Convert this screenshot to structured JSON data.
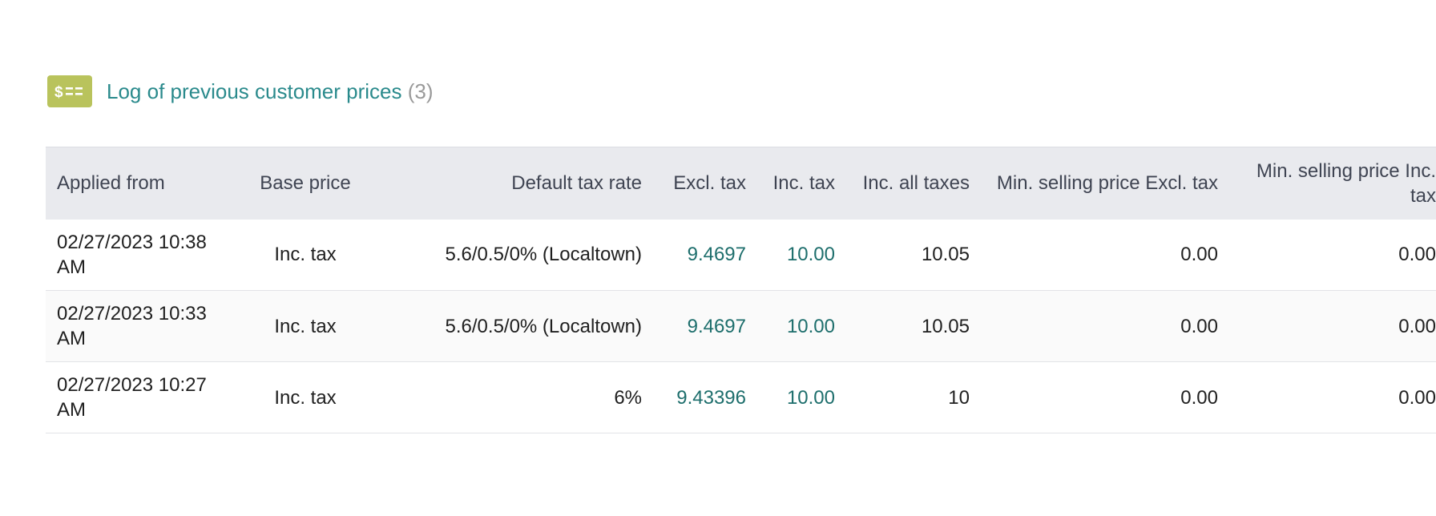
{
  "section": {
    "icon": "price-list-icon",
    "icon_color": "#b9c35c",
    "title": "Log of previous customer prices",
    "count": "(3)"
  },
  "table": {
    "headers": [
      "Applied from",
      "Base price",
      "Default tax rate",
      "Excl. tax",
      "Inc. tax",
      "Inc. all taxes",
      "Min. selling price Excl. tax",
      "Min. selling price Inc. tax"
    ],
    "rows": [
      {
        "applied_from": "02/27/2023 10:38 AM",
        "base_price": "Inc. tax",
        "default_tax_rate": "5.6/0.5/0% (Localtown)",
        "excl_tax": "9.4697",
        "inc_tax": "10.00",
        "inc_all_taxes": "10.05",
        "min_excl_tax": "0.00",
        "min_inc_tax": "0.00"
      },
      {
        "applied_from": "02/27/2023 10:33 AM",
        "base_price": "Inc. tax",
        "default_tax_rate": "5.6/0.5/0% (Localtown)",
        "excl_tax": "9.4697",
        "inc_tax": "10.00",
        "inc_all_taxes": "10.05",
        "min_excl_tax": "0.00",
        "min_inc_tax": "0.00"
      },
      {
        "applied_from": "02/27/2023 10:27 AM",
        "base_price": "Inc. tax",
        "default_tax_rate": "6%",
        "excl_tax": "9.43396",
        "inc_tax": "10.00",
        "inc_all_taxes": "10",
        "min_excl_tax": "0.00",
        "min_inc_tax": "0.00"
      }
    ]
  },
  "colors": {
    "link": "#2a8a8c",
    "value_link": "#1d6e6c",
    "header_bg": "#e9eaee"
  }
}
